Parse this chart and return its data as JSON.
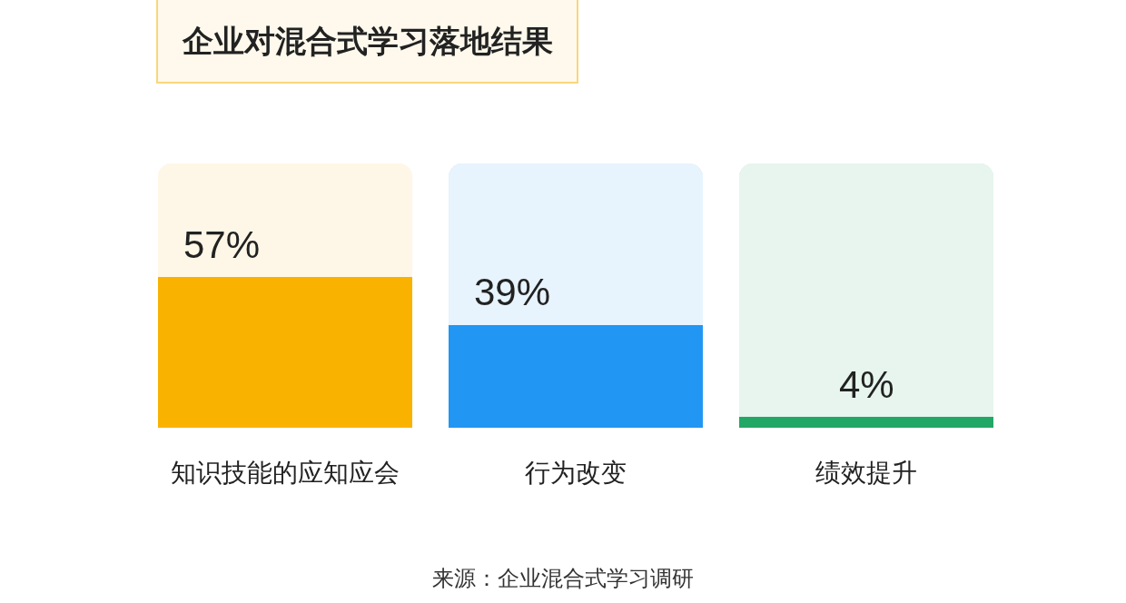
{
  "chart_data": {
    "type": "bar",
    "title": "企业对混合式学习落地结果",
    "categories": [
      "知识技能的应知应会",
      "行为改变",
      "绩效提升"
    ],
    "stacked": true,
    "series": [
      {
        "colors": [
          "#f9b200",
          "#2196f3",
          "#22a765"
        ],
        "values": [
          57,
          39,
          4
        ],
        "value_labels": [
          "57%",
          "39%",
          "4%"
        ]
      },
      {
        "colors": [
          "#fef7e7",
          "#e7f3fd",
          "#e7f5ee"
        ],
        "values": [
          43,
          61,
          96
        ]
      }
    ],
    "ylim": [
      0,
      100
    ],
    "tick_labels": "x",
    "annotations": [
      "来源：企业混合式学习调研"
    ]
  }
}
